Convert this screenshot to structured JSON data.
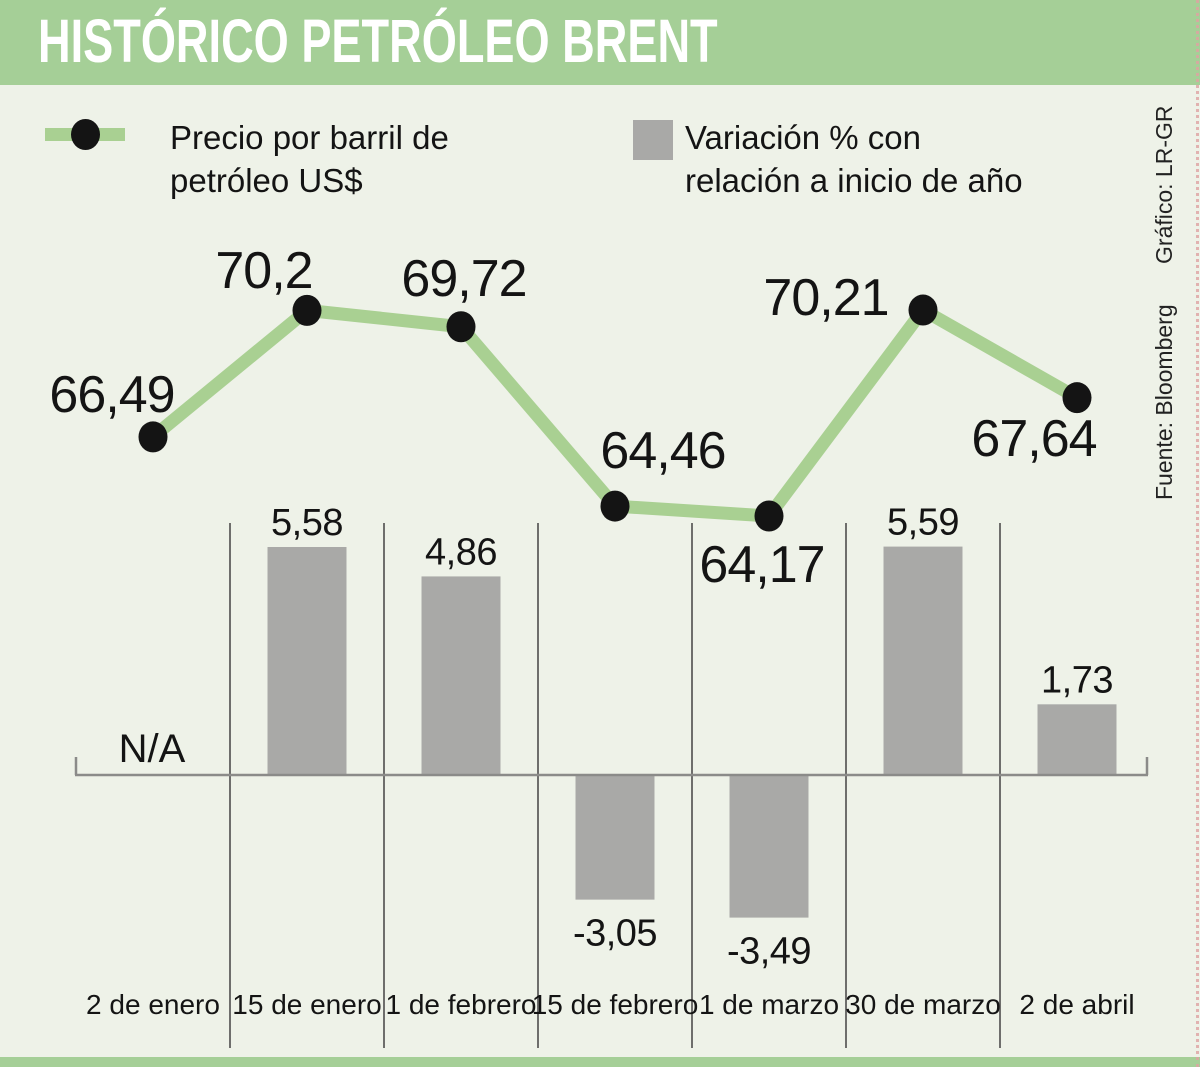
{
  "header": {
    "title": "HISTÓRICO PETRÓLEO BRENT"
  },
  "legend": {
    "price": {
      "line1": "Precio por barril de",
      "line2": "petróleo US$"
    },
    "variation": {
      "line1": "Variación % con",
      "line2": "relación a inicio de año"
    }
  },
  "source": {
    "fuente": "Fuente: Bloomberg",
    "credito": "Gráfico: LR-GR"
  },
  "colors": {
    "header_green": "#a5cf97",
    "line_green": "#a9d092",
    "bar_gray": "#a9a9a7",
    "background": "#eef2e8",
    "text": "#141414",
    "axis_gray": "#8b8b89",
    "separator_gray": "#6e6e6c",
    "dot_black": "#141414"
  },
  "chart_data": {
    "type": "combo line+bar",
    "title": "HISTÓRICO PETRÓLEO BRENT",
    "categories": [
      "2 de enero",
      "15 de enero",
      "1 de febrero",
      "15 de febrero",
      "1 de marzo",
      "30 de marzo",
      "2 de abril"
    ],
    "series": [
      {
        "name": "Precio por barril de petróleo US$",
        "type": "line",
        "values": [
          66.49,
          70.2,
          69.72,
          64.46,
          64.17,
          70.21,
          67.64
        ],
        "value_labels": [
          "66,49",
          "70,2",
          "69,72",
          "64,46",
          "64,17",
          "70,21",
          "67,64"
        ]
      },
      {
        "name": "Variación % con relación a inicio de año",
        "type": "bar",
        "values": [
          null,
          5.58,
          4.86,
          -3.05,
          -3.49,
          5.59,
          1.73
        ],
        "value_labels": [
          "N/A",
          "5,58",
          "4,86",
          "-3,05",
          "-3,49",
          "5,59",
          "1,73"
        ]
      }
    ],
    "baseline": 0,
    "grid": "vertical category separators",
    "legend_position": "top",
    "value_axis_labels_visible": false
  }
}
